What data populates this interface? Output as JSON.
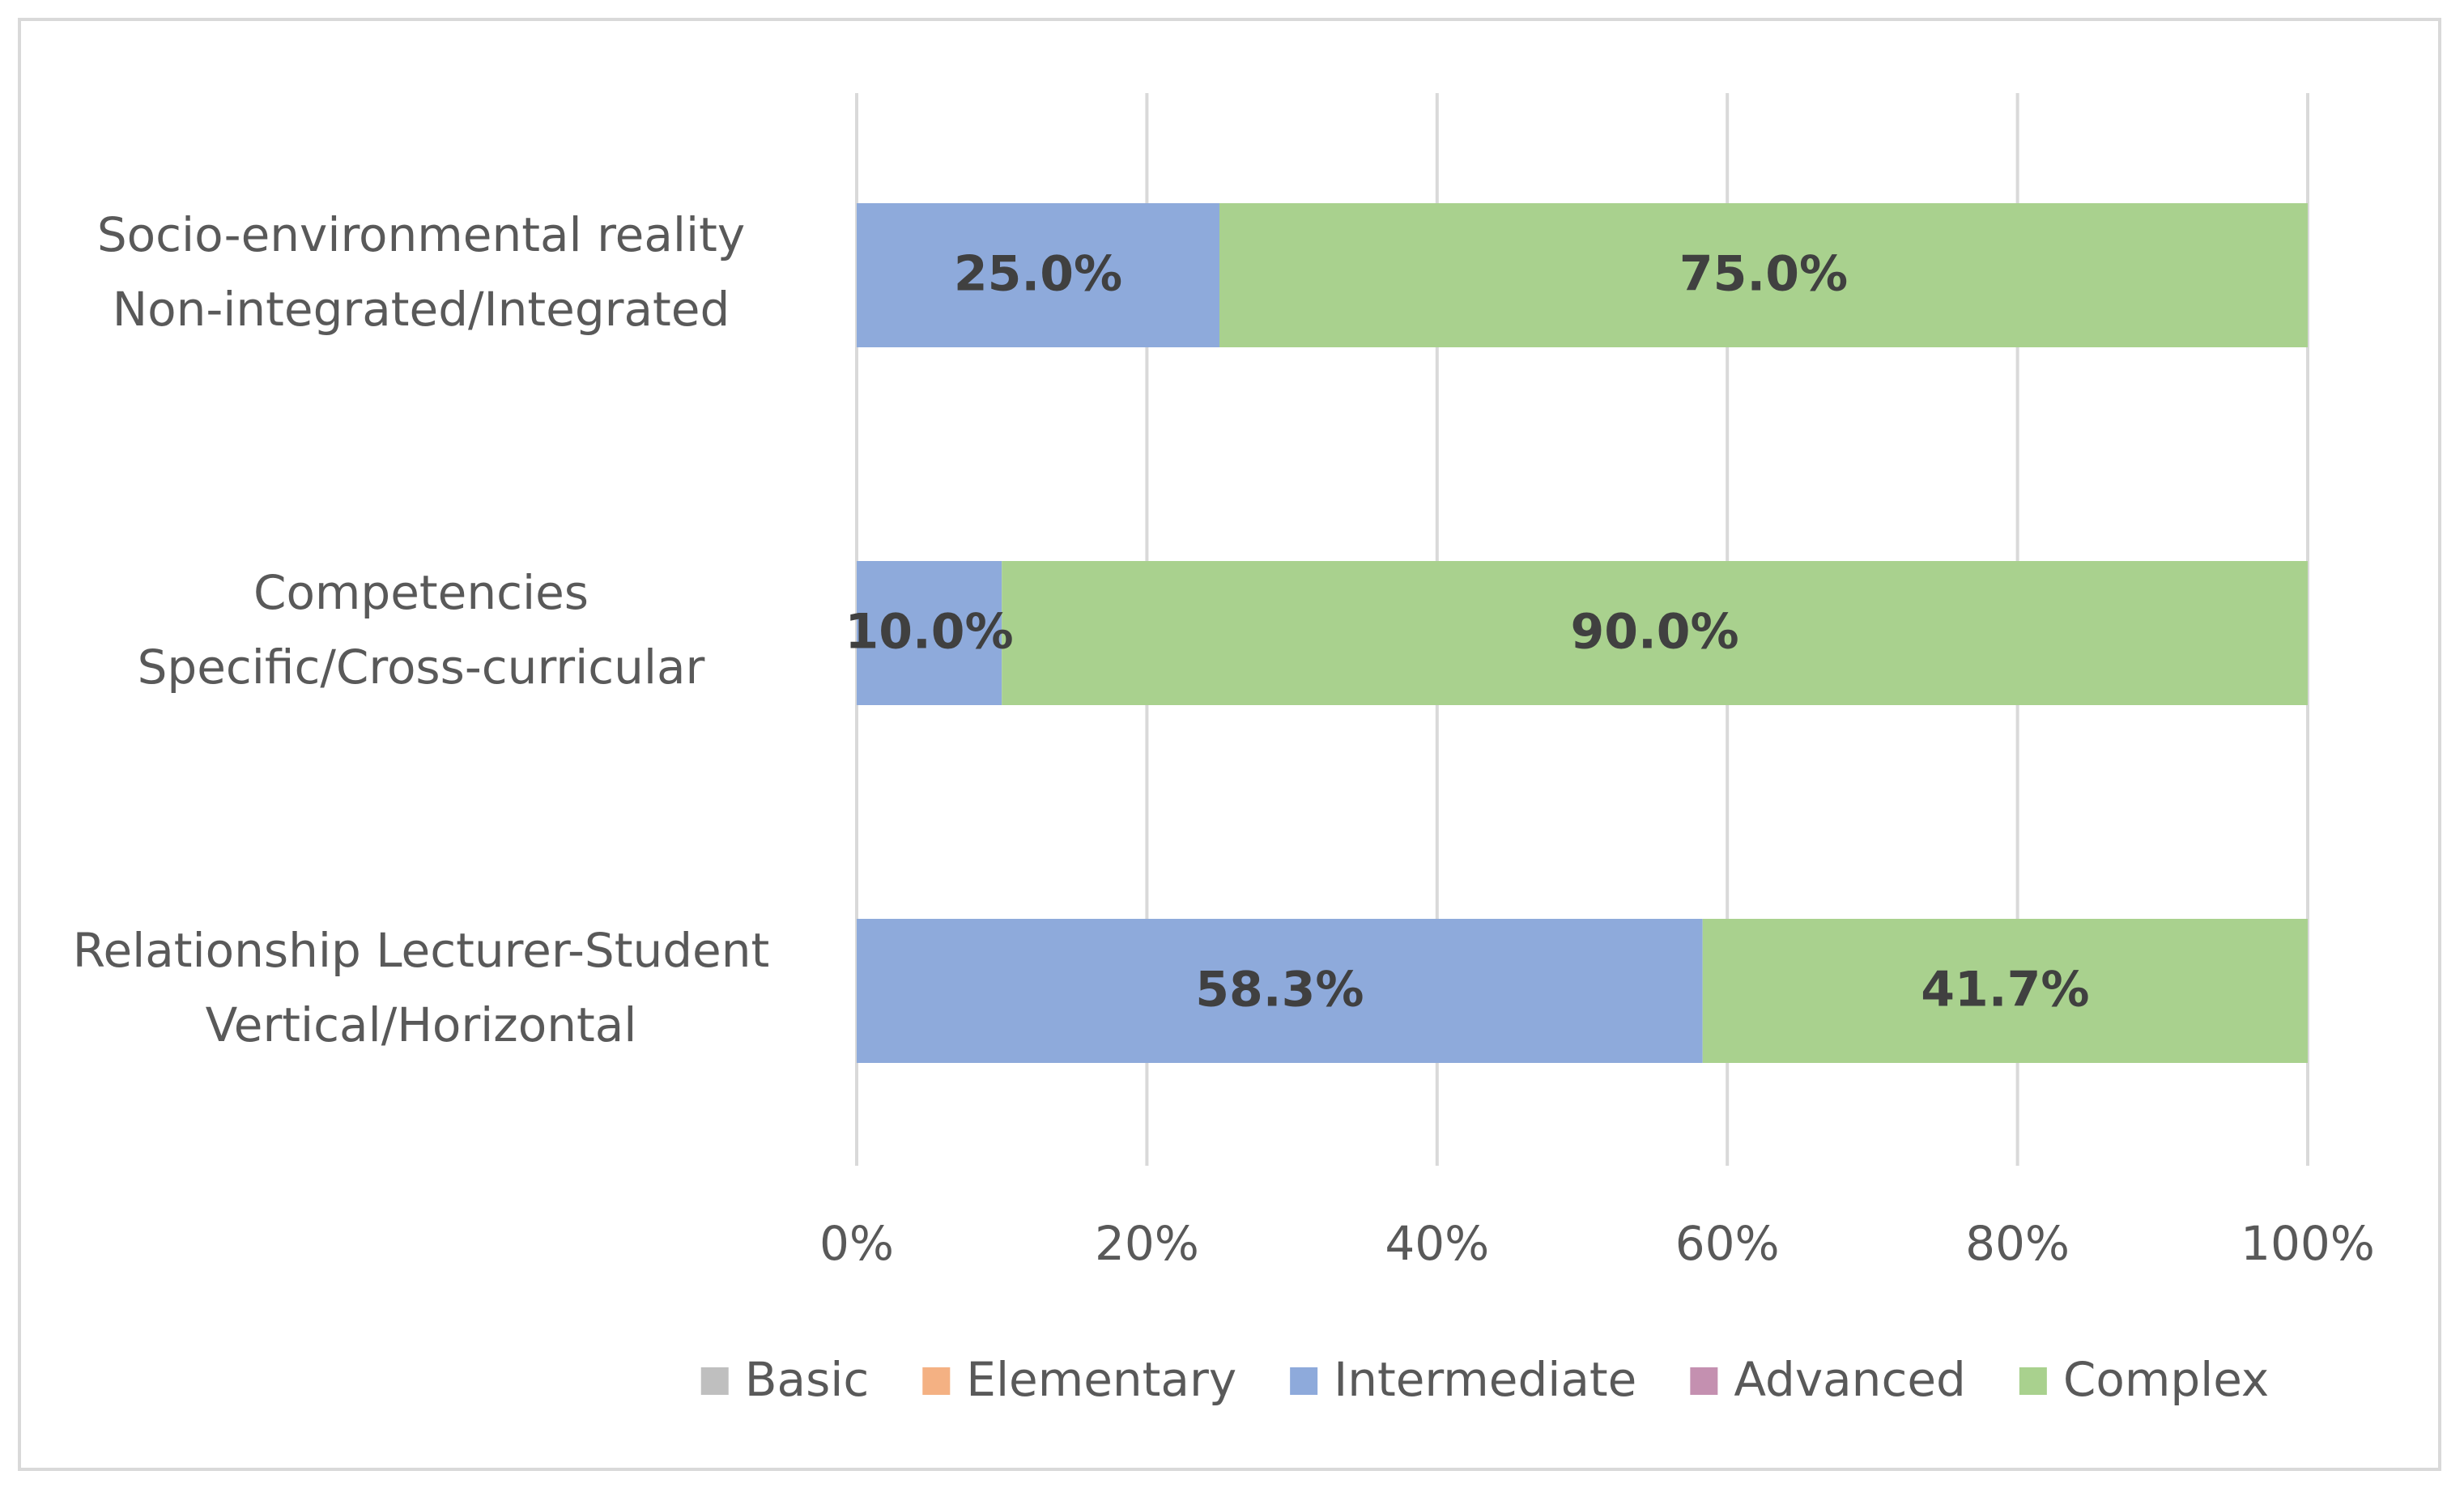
{
  "chart_data": {
    "type": "bar",
    "orientation": "horizontal",
    "stacked": "percent",
    "title": "",
    "xlabel": "",
    "ylabel": "",
    "xlim": [
      0,
      100
    ],
    "x_ticks": [
      "0%",
      "20%",
      "40%",
      "60%",
      "80%",
      "100%"
    ],
    "grid": true,
    "legend_position": "bottom",
    "categories": [
      [
        "Socio-environmental reality",
        "Non-integrated/Integrated"
      ],
      [
        "Competencies",
        "Specific/Cross-curricular"
      ],
      [
        "Relationship Lecturer-Student",
        "Vertical/Horizontal"
      ]
    ],
    "series": [
      {
        "name": "Basic",
        "color": "#bfbfbf",
        "values": [
          0,
          0,
          0
        ],
        "labels": [
          "",
          "",
          ""
        ]
      },
      {
        "name": "Elementary",
        "color": "#f4b183",
        "values": [
          0,
          0,
          0
        ],
        "labels": [
          "",
          "",
          ""
        ]
      },
      {
        "name": "Intermediate",
        "color": "#8eaadb",
        "values": [
          25.0,
          10.0,
          58.3
        ],
        "labels": [
          "25.0%",
          "10.0%",
          "58.3%"
        ]
      },
      {
        "name": "Advanced",
        "color": "#c490b0",
        "values": [
          0,
          0,
          0
        ],
        "labels": [
          "",
          "",
          ""
        ]
      },
      {
        "name": "Complex",
        "color": "#a9d18e",
        "values": [
          75.0,
          90.0,
          41.7
        ],
        "labels": [
          "75.0%",
          "90.0%",
          "41.7%"
        ]
      }
    ]
  }
}
